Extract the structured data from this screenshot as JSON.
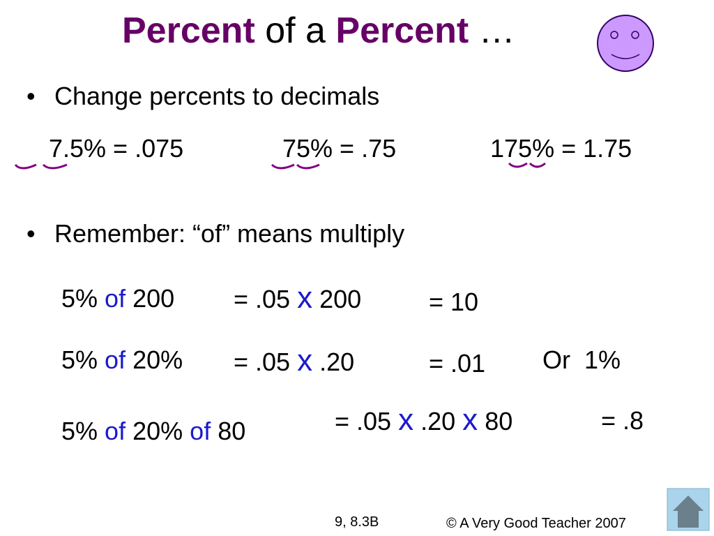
{
  "title": [
    "Percent",
    "of a",
    "Percent",
    "…"
  ],
  "bullets": [
    "Change percents to decimals",
    "Remember: “of” means multiply"
  ],
  "decimals": [
    "7.5% = .075",
    "75% = .75",
    "175% = 1.75"
  ],
  "rows": [
    {
      "left": [
        "5%",
        "of",
        "200"
      ],
      "middle": [
        "= .05",
        "x",
        "200"
      ],
      "result": "= 10"
    },
    {
      "left": [
        "5%",
        "of",
        "20%"
      ],
      "middle": [
        "= .05",
        "x",
        ".20"
      ],
      "result": "= .01",
      "alt": "Or  1%"
    },
    {
      "left": [
        "5%",
        "of",
        "20%",
        "of",
        "80"
      ],
      "middle": [
        "= .05",
        "x",
        ".20",
        "x",
        "80"
      ],
      "result": "= .8"
    }
  ],
  "footer": {
    "page": "9, 8.3B",
    "copyright": "© A Very Good Teacher 2007"
  }
}
